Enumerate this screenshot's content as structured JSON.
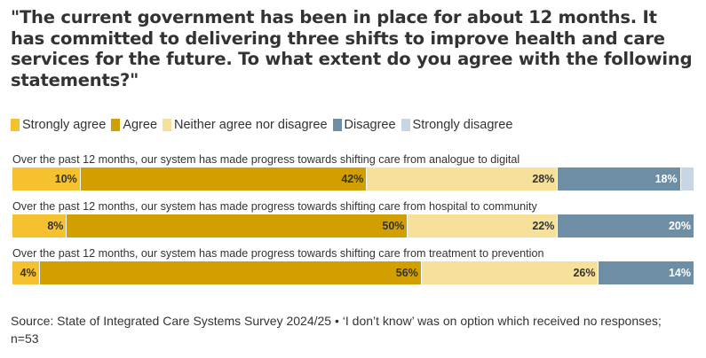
{
  "title": "\"The current government has been in place for about 12 months. It has committed to delivering three shifts to improve health and care services for the future. To what extent do you agree with the following statements?\"",
  "source": "Source: State of Integrated Care Systems Survey 2024/25 • ‘I don’t know’ was on option which received no responses; n=53",
  "chart_data": {
    "type": "bar",
    "orientation": "horizontal",
    "stacked": true,
    "percent": true,
    "legend_position": "top-left",
    "categories": [
      "Over the past 12 months, our system has made progress towards shifting care from analogue to digital",
      "Over the past 12 months, our system has made progress towards shifting care from hospital to community",
      "Over the past 12 months, our system has made progress towards shifting care from treatment to prevention"
    ],
    "series": [
      {
        "name": "Strongly agree",
        "color": "#f6c12e",
        "label_color": "#333333",
        "values": [
          10,
          8,
          4
        ]
      },
      {
        "name": "Agree",
        "color": "#d1a000",
        "label_color": "#333333",
        "values": [
          42,
          50,
          56
        ]
      },
      {
        "name": "Neither agree nor disagree",
        "color": "#f6e09a",
        "label_color": "#333333",
        "values": [
          28,
          22,
          26
        ]
      },
      {
        "name": "Disagree",
        "color": "#6e8ea5",
        "label_color": "#ffffff",
        "values": [
          18,
          20,
          14
        ]
      },
      {
        "name": "Strongly disagree",
        "color": "#c7d6e2",
        "label_color": "#333333",
        "values": [
          2,
          0,
          0
        ]
      }
    ],
    "value_labels": [
      [
        "10%",
        "42%",
        "28%",
        "18%",
        ""
      ],
      [
        "8%",
        "50%",
        "22%",
        "20%",
        ""
      ],
      [
        "4%",
        "56%",
        "26%",
        "14%",
        ""
      ]
    ],
    "xlim": [
      0,
      100
    ]
  }
}
